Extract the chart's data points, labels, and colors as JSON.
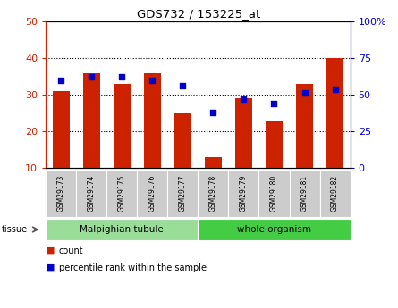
{
  "title": "GDS732 / 153225_at",
  "samples": [
    "GSM29173",
    "GSM29174",
    "GSM29175",
    "GSM29176",
    "GSM29177",
    "GSM29178",
    "GSM29179",
    "GSM29180",
    "GSM29181",
    "GSM29182"
  ],
  "counts": [
    31,
    36,
    33,
    36,
    25,
    13,
    29,
    23,
    33,
    40
  ],
  "percentile_ranks": [
    60,
    62,
    62,
    60,
    56,
    38,
    47,
    44,
    51,
    54
  ],
  "left_ylim": [
    10,
    50
  ],
  "left_yticks": [
    10,
    20,
    30,
    40,
    50
  ],
  "right_ylim": [
    0,
    100
  ],
  "right_yticks": [
    0,
    25,
    50,
    75,
    100
  ],
  "bar_color": "#cc2200",
  "dot_color": "#0000cc",
  "tissue_groups": [
    {
      "label": "Malpighian tubule",
      "start": 0,
      "end": 5,
      "color": "#99dd99"
    },
    {
      "label": "whole organism",
      "start": 5,
      "end": 10,
      "color": "#44cc44"
    }
  ],
  "tissue_label": "tissue",
  "legend_count_label": "count",
  "legend_pct_label": "percentile rank within the sample",
  "bar_width": 0.55,
  "fig_width": 4.45,
  "fig_height": 3.45,
  "fig_dpi": 100
}
